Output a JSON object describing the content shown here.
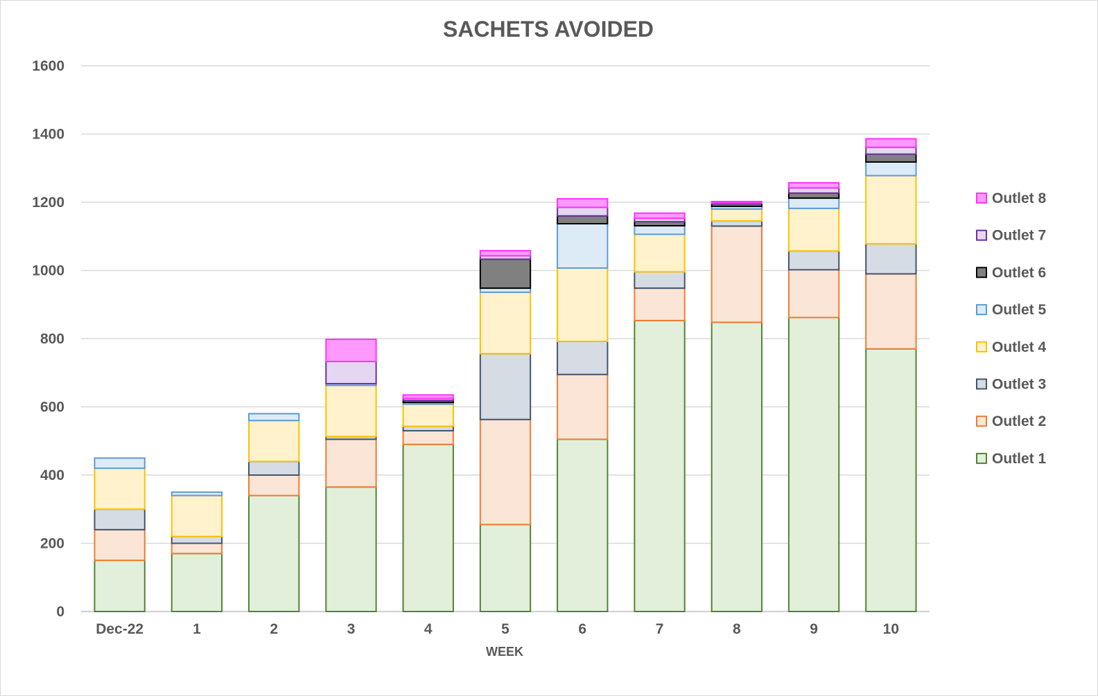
{
  "chart_data": {
    "type": "bar",
    "stacked": true,
    "title": "SACHETS AVOIDED",
    "xlabel": "WEEK",
    "ylabel": "",
    "ylim": [
      0,
      1600
    ],
    "yticks": [
      0,
      200,
      400,
      600,
      800,
      1000,
      1200,
      1400,
      1600
    ],
    "grid": true,
    "legend_position": "right",
    "categories": [
      "Dec-22",
      "1",
      "2",
      "3",
      "4",
      "5",
      "6",
      "7",
      "8",
      "9",
      "10"
    ],
    "series": [
      {
        "name": "Outlet 1",
        "fill": "#e2efda",
        "stroke": "#548235",
        "values": [
          150,
          170,
          340,
          365,
          490,
          255,
          505,
          853,
          848,
          862,
          770
        ]
      },
      {
        "name": "Outlet 2",
        "fill": "#fbe5d6",
        "stroke": "#ed7d31",
        "values": [
          90,
          30,
          60,
          140,
          40,
          308,
          190,
          95,
          282,
          140,
          220
        ]
      },
      {
        "name": "Outlet 3",
        "fill": "#d6dce4",
        "stroke": "#44546a",
        "values": [
          60,
          20,
          40,
          8,
          13,
          193,
          97,
          48,
          15,
          55,
          88
        ]
      },
      {
        "name": "Outlet 4",
        "fill": "#fff2cc",
        "stroke": "#ffc000",
        "values": [
          120,
          120,
          120,
          150,
          65,
          180,
          215,
          110,
          35,
          125,
          200
        ]
      },
      {
        "name": "Outlet 5",
        "fill": "#ddebf7",
        "stroke": "#5b9bd5",
        "values": [
          30,
          10,
          20,
          5,
          5,
          12,
          130,
          25,
          8,
          30,
          40
        ]
      },
      {
        "name": "Outlet 6",
        "fill": "#808080",
        "stroke": "#000000",
        "values": [
          0,
          0,
          0,
          0,
          6,
          85,
          23,
          12,
          7,
          15,
          23
        ]
      },
      {
        "name": "Outlet 7",
        "fill": "#e4d7f1",
        "stroke": "#7030a0",
        "values": [
          0,
          0,
          0,
          65,
          6,
          10,
          25,
          10,
          3,
          15,
          20
        ]
      },
      {
        "name": "Outlet 8",
        "fill": "#ff99ff",
        "stroke": "#ff33ff",
        "values": [
          0,
          0,
          0,
          65,
          10,
          15,
          25,
          15,
          4,
          15,
          25
        ]
      }
    ]
  }
}
